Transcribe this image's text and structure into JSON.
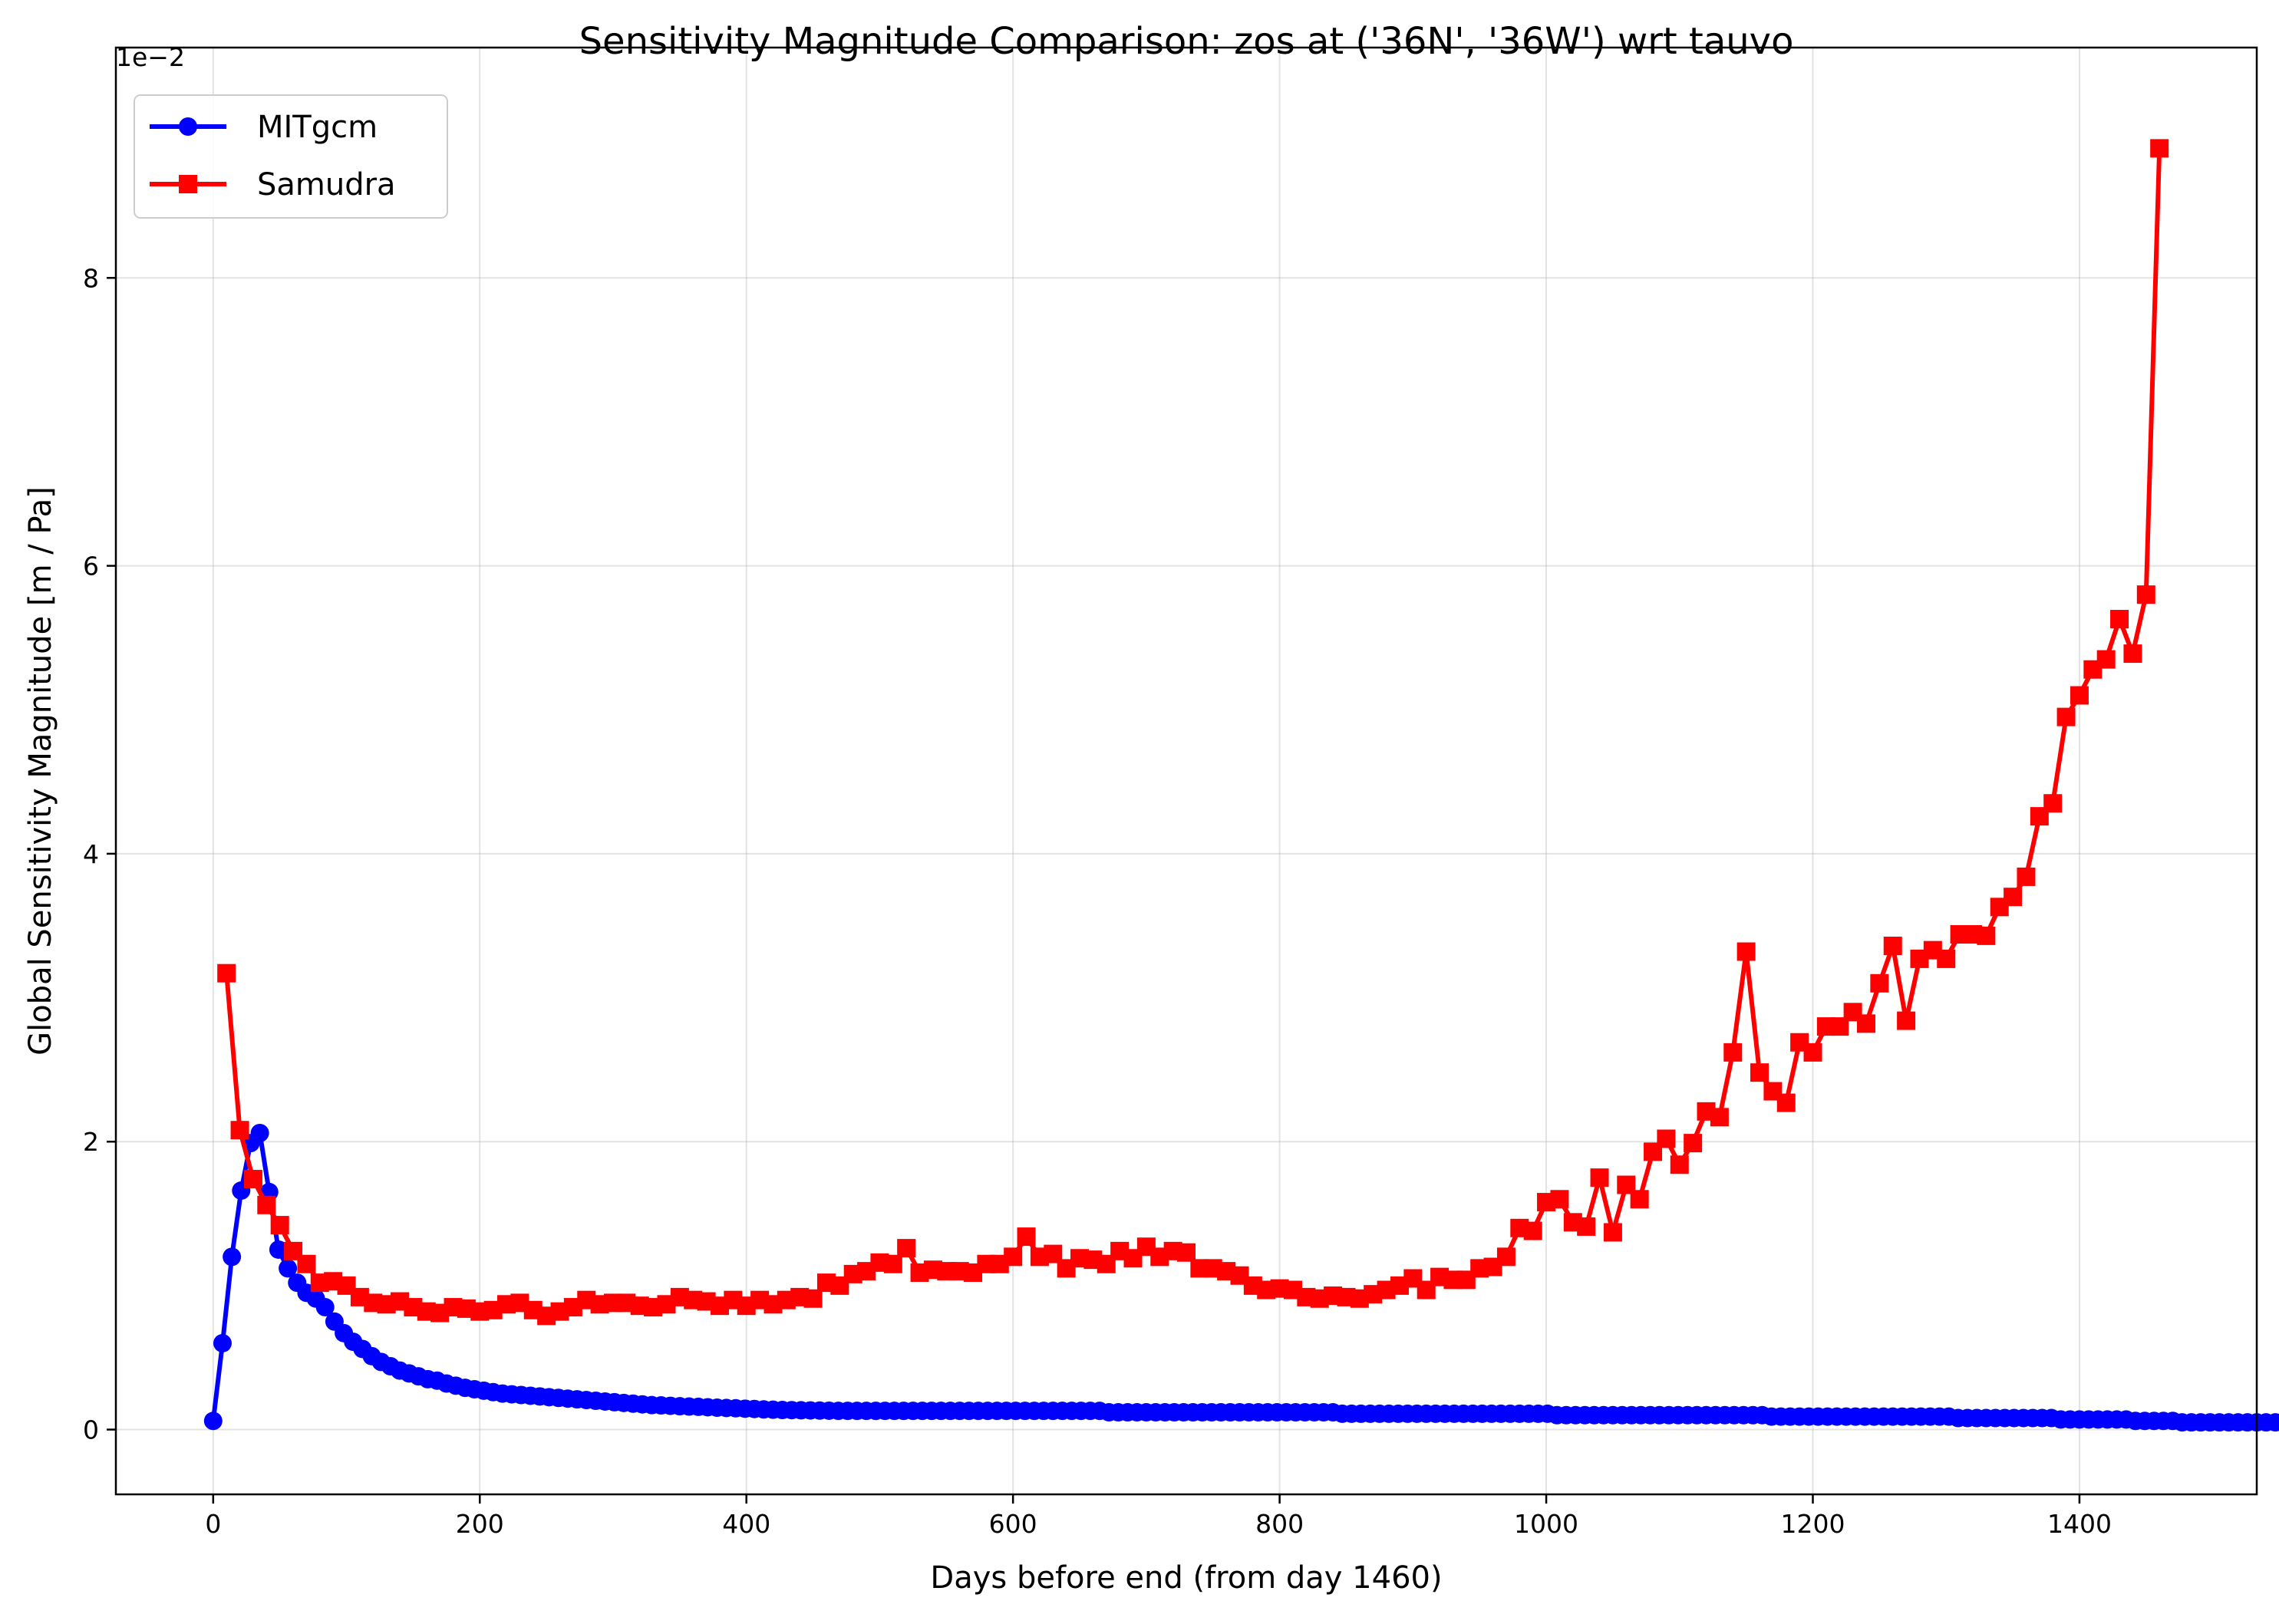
{
  "chart_data": {
    "type": "line",
    "title": "Sensitivity Magnitude Comparison: zos at ('36N', '36W') wrt tauvo",
    "xlabel": "Days before end (from day 1460)",
    "ylabel": "Global Sensitivity Magnitude [m / Pa]",
    "y_offset_label": "1e−2",
    "y_scale_factor": 0.01,
    "xlim": [
      -73,
      1533
    ],
    "ylim": [
      -0.45,
      9.6
    ],
    "x_ticks": [
      0,
      200,
      400,
      600,
      800,
      1000,
      1200,
      1400
    ],
    "x_tick_labels": [
      "0",
      "200",
      "400",
      "600",
      "800",
      "1000",
      "1200",
      "1400"
    ],
    "y_ticks": [
      0,
      2,
      4,
      6,
      8
    ],
    "y_tick_labels": [
      "0",
      "2",
      "4",
      "6",
      "8"
    ],
    "grid": true,
    "legend_position": "top-left",
    "series": [
      {
        "name": "MITgcm",
        "color": "#0000ff",
        "marker": "circle",
        "x_start": 0,
        "x_step": 7,
        "values": [
          0.06,
          0.6,
          1.2,
          1.66,
          1.99,
          2.06,
          1.65,
          1.25,
          1.12,
          1.02,
          0.95,
          0.91,
          0.85,
          0.75,
          0.67,
          0.61,
          0.56,
          0.51,
          0.47,
          0.44,
          0.41,
          0.39,
          0.37,
          0.35,
          0.34,
          0.32,
          0.305,
          0.29,
          0.28,
          0.27,
          0.26,
          0.25,
          0.245,
          0.24,
          0.235,
          0.23,
          0.225,
          0.22,
          0.215,
          0.21,
          0.205,
          0.2,
          0.195,
          0.19,
          0.185,
          0.18,
          0.175,
          0.17,
          0.168,
          0.165,
          0.162,
          0.16,
          0.158,
          0.155,
          0.152,
          0.15,
          0.148,
          0.145,
          0.143,
          0.14,
          0.138,
          0.136,
          0.135,
          0.134,
          0.133,
          0.132,
          0.131,
          0.13,
          0.13,
          0.13,
          0.13,
          0.13,
          0.13,
          0.13,
          0.13,
          0.13,
          0.13,
          0.13,
          0.13,
          0.13,
          0.13,
          0.13,
          0.13,
          0.13,
          0.13,
          0.13,
          0.13,
          0.13,
          0.13,
          0.13,
          0.13,
          0.13,
          0.13,
          0.13,
          0.13,
          0.13,
          0.12,
          0.12,
          0.12,
          0.12,
          0.12,
          0.12,
          0.12,
          0.12,
          0.12,
          0.12,
          0.12,
          0.12,
          0.12,
          0.12,
          0.12,
          0.12,
          0.12,
          0.12,
          0.12,
          0.12,
          0.12,
          0.12,
          0.12,
          0.12,
          0.12,
          0.11,
          0.11,
          0.11,
          0.11,
          0.11,
          0.11,
          0.11,
          0.11,
          0.11,
          0.11,
          0.11,
          0.11,
          0.11,
          0.11,
          0.11,
          0.11,
          0.11,
          0.11,
          0.11,
          0.11,
          0.11,
          0.11,
          0.11,
          0.1,
          0.1,
          0.1,
          0.1,
          0.1,
          0.1,
          0.1,
          0.1,
          0.1,
          0.1,
          0.1,
          0.1,
          0.1,
          0.1,
          0.1,
          0.1,
          0.1,
          0.1,
          0.1,
          0.1,
          0.1,
          0.1,
          0.1,
          0.09,
          0.09,
          0.09,
          0.09,
          0.09,
          0.09,
          0.09,
          0.09,
          0.09,
          0.09,
          0.09,
          0.09,
          0.09,
          0.09,
          0.09,
          0.09,
          0.09,
          0.09,
          0.09,
          0.09,
          0.08,
          0.08,
          0.08,
          0.08,
          0.08,
          0.08,
          0.08,
          0.08,
          0.08,
          0.08,
          0.08,
          0.07,
          0.07,
          0.07,
          0.07,
          0.07,
          0.07,
          0.07,
          0.07,
          0.06,
          0.06,
          0.06,
          0.06,
          0.06,
          0.05,
          0.05,
          0.05,
          0.05,
          0.05,
          0.05,
          0.05,
          0.05,
          0.05,
          0.05,
          0.05,
          0.05,
          0.05,
          0.05,
          0.05,
          0.05,
          0.05,
          0.05,
          0.05,
          0.05,
          0.05,
          0.05,
          0.05,
          0.05,
          0.05,
          0.05,
          0.05,
          0.05,
          0.05,
          0.05,
          0.05,
          0.05,
          0.05,
          0.05,
          0.05,
          0.05,
          0.05,
          0.05,
          0.05,
          0.05,
          0.05,
          0.05,
          0.04,
          0.04,
          0.04,
          0.04,
          0.04,
          0.04,
          0.04,
          0.04,
          0.04,
          0.04,
          0.04,
          0.04,
          0.04,
          0.04,
          0.04,
          0.04,
          0.04,
          0.04,
          0.04,
          0.04,
          0.04,
          0.04,
          0.04,
          0.04,
          0.04,
          0.04,
          0.04,
          0.04,
          0.04,
          0.04,
          0.04,
          0.04,
          0.04,
          0.04,
          0.04,
          0.04,
          0.04,
          0.04,
          0.04,
          0.04,
          0.04,
          0.04,
          0.04,
          0.04,
          0.04,
          0.04,
          0.04,
          0.03,
          0.02,
          0.01,
          0.005
        ]
      },
      {
        "name": "Samudra",
        "color": "#ff0000",
        "marker": "square",
        "x_start": 10,
        "x_step": 10,
        "values": [
          3.17,
          2.08,
          1.74,
          1.56,
          1.42,
          1.24,
          1.15,
          1.02,
          1.03,
          1.0,
          0.92,
          0.88,
          0.87,
          0.89,
          0.85,
          0.82,
          0.81,
          0.85,
          0.84,
          0.82,
          0.83,
          0.87,
          0.88,
          0.83,
          0.79,
          0.82,
          0.85,
          0.9,
          0.87,
          0.88,
          0.88,
          0.86,
          0.85,
          0.87,
          0.92,
          0.9,
          0.89,
          0.86,
          0.9,
          0.86,
          0.9,
          0.87,
          0.9,
          0.92,
          0.91,
          1.02,
          1.0,
          1.08,
          1.1,
          1.16,
          1.15,
          1.26,
          1.09,
          1.11,
          1.1,
          1.1,
          1.09,
          1.15,
          1.15,
          1.2,
          1.34,
          1.2,
          1.22,
          1.12,
          1.19,
          1.18,
          1.15,
          1.24,
          1.19,
          1.27,
          1.2,
          1.24,
          1.23,
          1.12,
          1.12,
          1.1,
          1.07,
          1.0,
          0.97,
          0.98,
          0.97,
          0.92,
          0.91,
          0.93,
          0.92,
          0.91,
          0.94,
          0.97,
          1.0,
          1.05,
          0.97,
          1.06,
          1.04,
          1.04,
          1.12,
          1.13,
          1.2,
          1.4,
          1.38,
          1.58,
          1.6,
          1.44,
          1.41,
          1.75,
          1.37,
          1.7,
          1.6,
          1.93,
          2.02,
          1.84,
          1.99,
          2.21,
          2.17,
          2.62,
          3.32,
          2.48,
          2.35,
          2.27,
          2.69,
          2.62,
          2.8,
          2.8,
          2.9,
          2.82,
          3.1,
          3.36,
          2.84,
          3.27,
          3.33,
          3.27,
          3.44,
          3.44,
          3.43,
          3.63,
          3.7,
          3.84,
          4.26,
          4.35,
          4.95,
          5.1,
          5.28,
          5.35,
          5.63,
          5.39,
          5.8,
          8.9
        ]
      }
    ]
  }
}
